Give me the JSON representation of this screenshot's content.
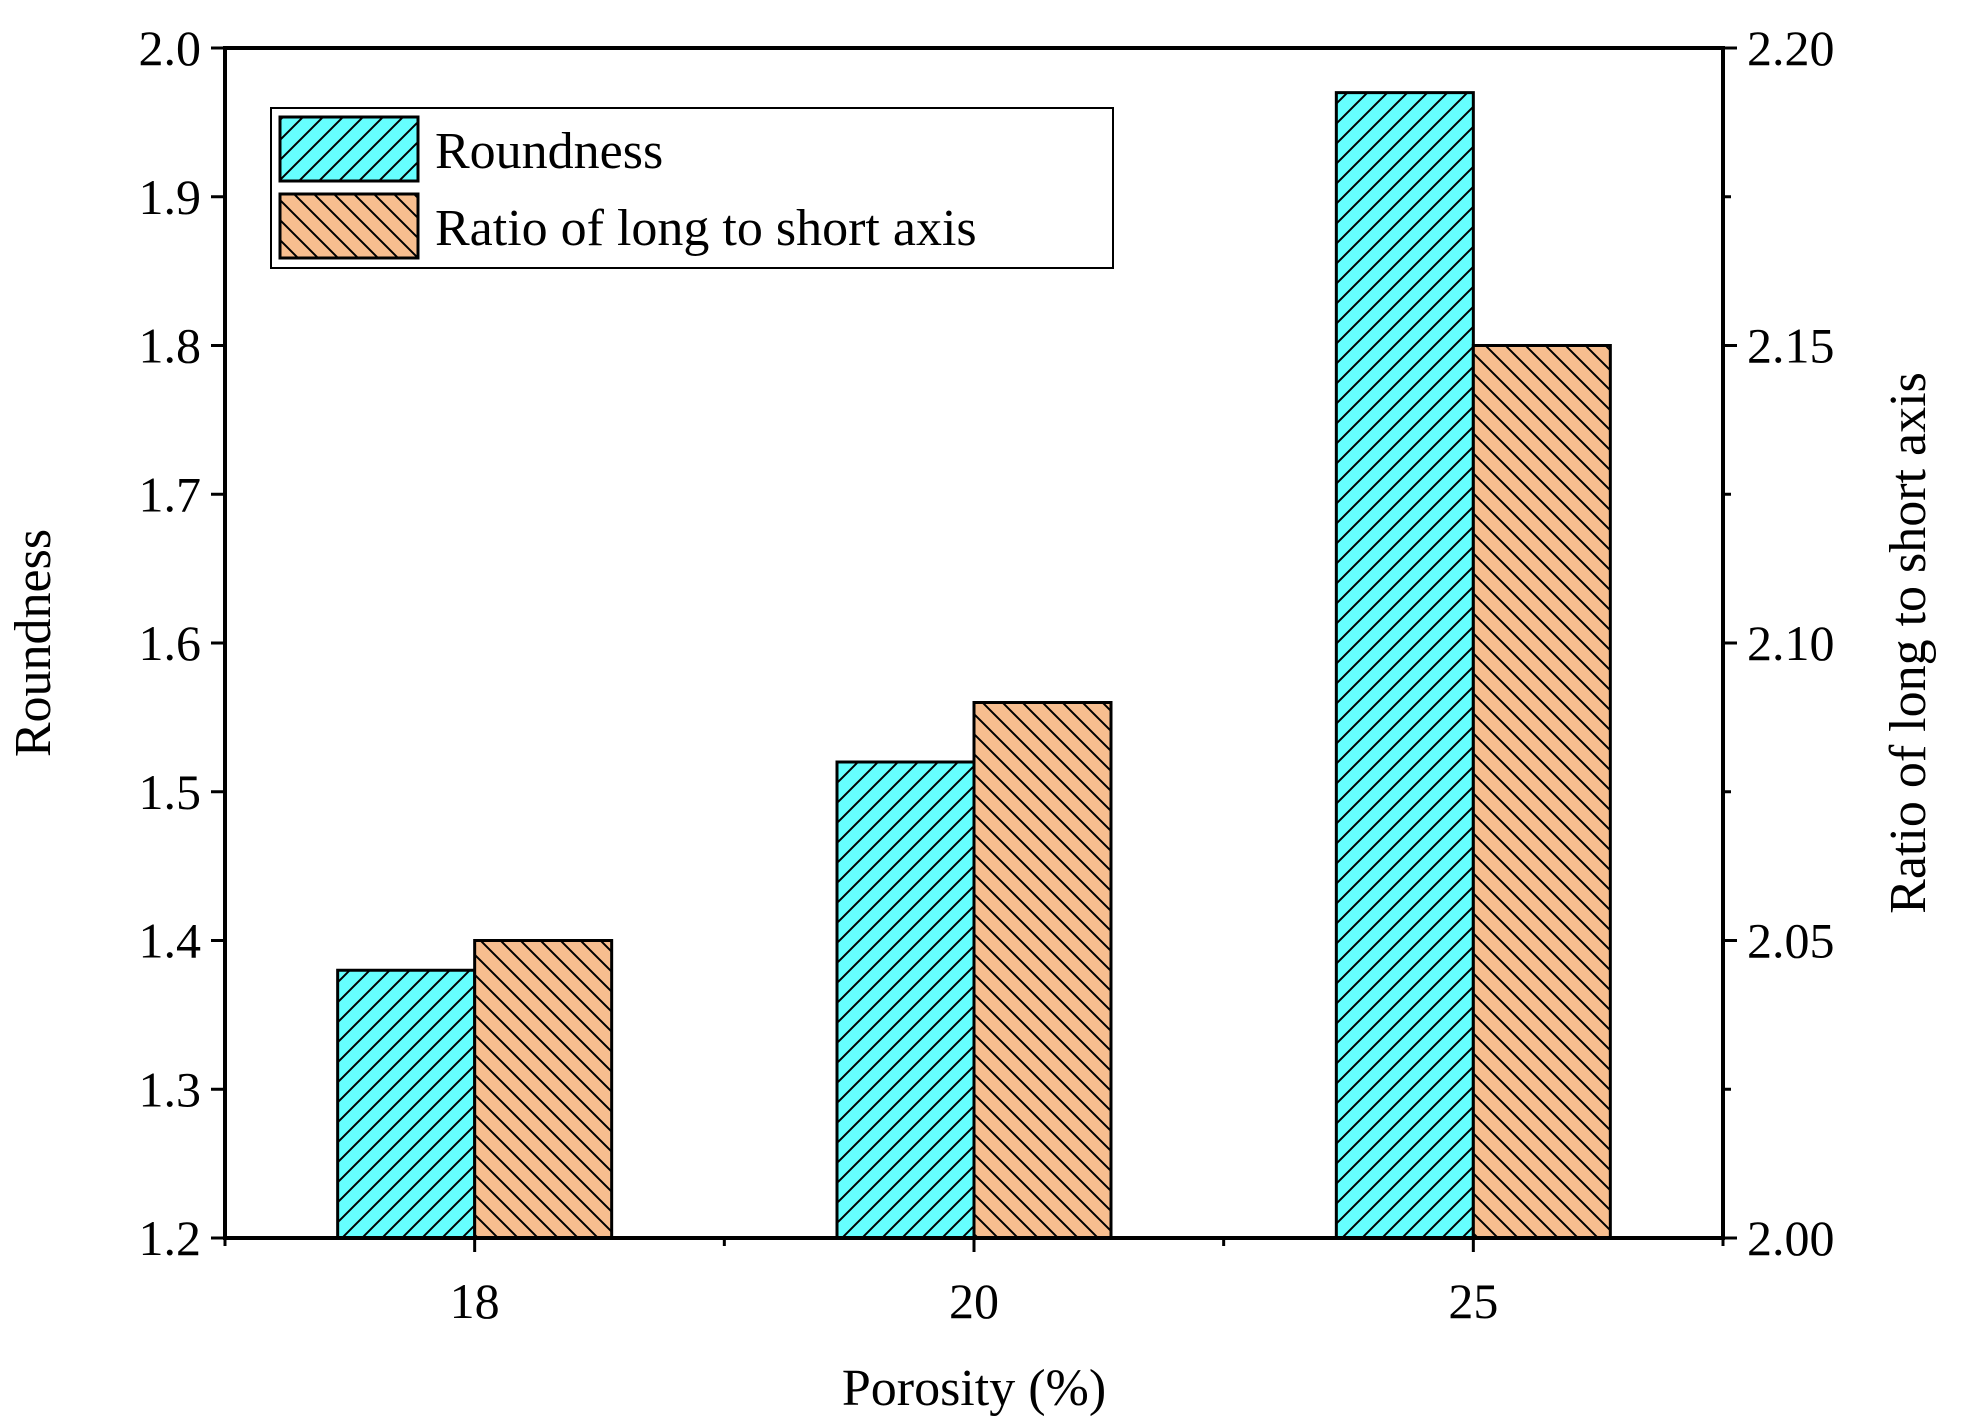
{
  "chart_data": {
    "type": "bar",
    "categories": [
      "18",
      "20",
      "25"
    ],
    "xlabel": "Porosity (%)",
    "ylabel": "Roundness",
    "y2label": "Ratio of long to short axis",
    "ylim": [
      1.2,
      2.0
    ],
    "y2lim": [
      2.0,
      2.2
    ],
    "yticks": [
      "1.2",
      "1.3",
      "1.4",
      "1.5",
      "1.6",
      "1.7",
      "1.8",
      "1.9",
      "2.0"
    ],
    "y2ticks": [
      "2.00",
      "2.05",
      "2.10",
      "2.15",
      "2.20"
    ],
    "legend_position": "top-left",
    "series": [
      {
        "name": "Roundness",
        "axis": "left",
        "values": [
          1.38,
          1.52,
          1.97
        ],
        "color": "#66ffff",
        "hatch": "forward"
      },
      {
        "name": "Ratio of long to short axis",
        "axis": "right",
        "values": [
          2.05,
          2.09,
          2.15
        ],
        "color": "#f7be8f",
        "hatch": "backward"
      }
    ]
  }
}
